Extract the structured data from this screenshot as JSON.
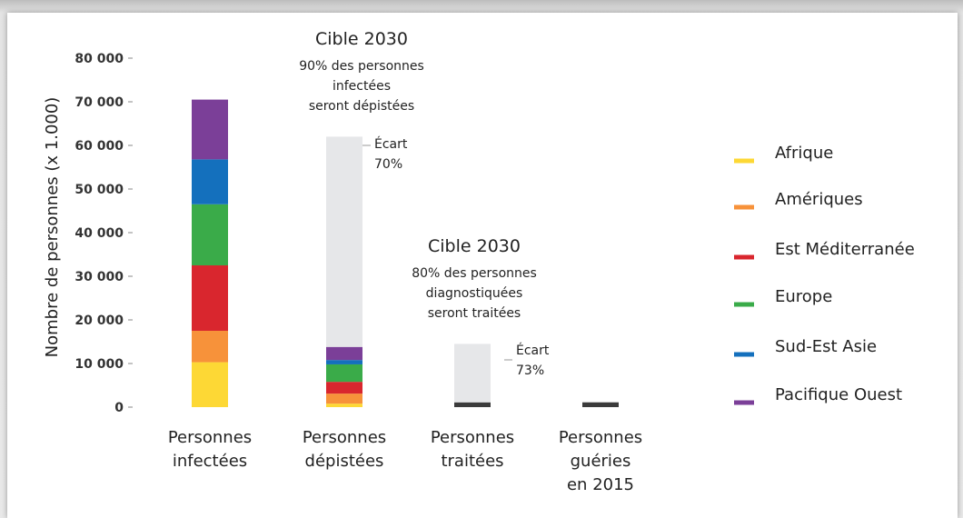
{
  "chart_data": {
    "type": "stacked_bar",
    "ylabel": "Nombre de personnes (x 1.000)",
    "categories": [
      "Personnes\ninfectées",
      "Personnes\ndépistées",
      "Personnes\ntraitées",
      "Personnes\nguéries\nen 2015"
    ],
    "ylim": [
      0,
      80000
    ],
    "yticks": [
      {
        "value": 0,
        "label": "0"
      },
      {
        "value": 10000,
        "label": "10 000"
      },
      {
        "value": 20000,
        "label": "20 000"
      },
      {
        "value": 30000,
        "label": "30 000"
      },
      {
        "value": 40000,
        "label": "40 000"
      },
      {
        "value": 50000,
        "label": "50 000"
      },
      {
        "value": 60000,
        "label": "60 000"
      },
      {
        "value": 70000,
        "label": "70 000"
      },
      {
        "value": 80000,
        "label": "80 000"
      }
    ],
    "series": [
      {
        "name": "Afrique",
        "color": "#fdd835",
        "values": [
          10300,
          800,
          null,
          null
        ]
      },
      {
        "name": "Amériques",
        "color": "#f7923a",
        "values": [
          7200,
          2300,
          null,
          null
        ]
      },
      {
        "name": "Est Méditerranée",
        "color": "#d9262e",
        "values": [
          15000,
          2700,
          null,
          null
        ]
      },
      {
        "name": "Europe",
        "color": "#3aab49",
        "values": [
          14000,
          4000,
          null,
          null
        ]
      },
      {
        "name": "Sud-Est Asie",
        "color": "#1470bd",
        "values": [
          10300,
          1000,
          null,
          null
        ]
      },
      {
        "name": "Pacifique Ouest",
        "color": "#7b3f98",
        "values": [
          13700,
          3000,
          null,
          null
        ]
      },
      {
        "color": "#3b3b3b",
        "values": [
          null,
          null,
          1100,
          1100
        ]
      },
      {
        "color": "#e6e7e9",
        "values": [
          null,
          48200,
          13400,
          null
        ]
      }
    ],
    "annotations": [
      {
        "title": "Cible 2030",
        "text": "90% des personnes\ninfectées\nseront dépistées"
      },
      {
        "title": "Cible 2030",
        "text": "80% des personnes\ndiagnostiquées\nseront traitées"
      }
    ],
    "gap_labels": [
      "Écart\n70%",
      "Écart\n73%"
    ]
  }
}
